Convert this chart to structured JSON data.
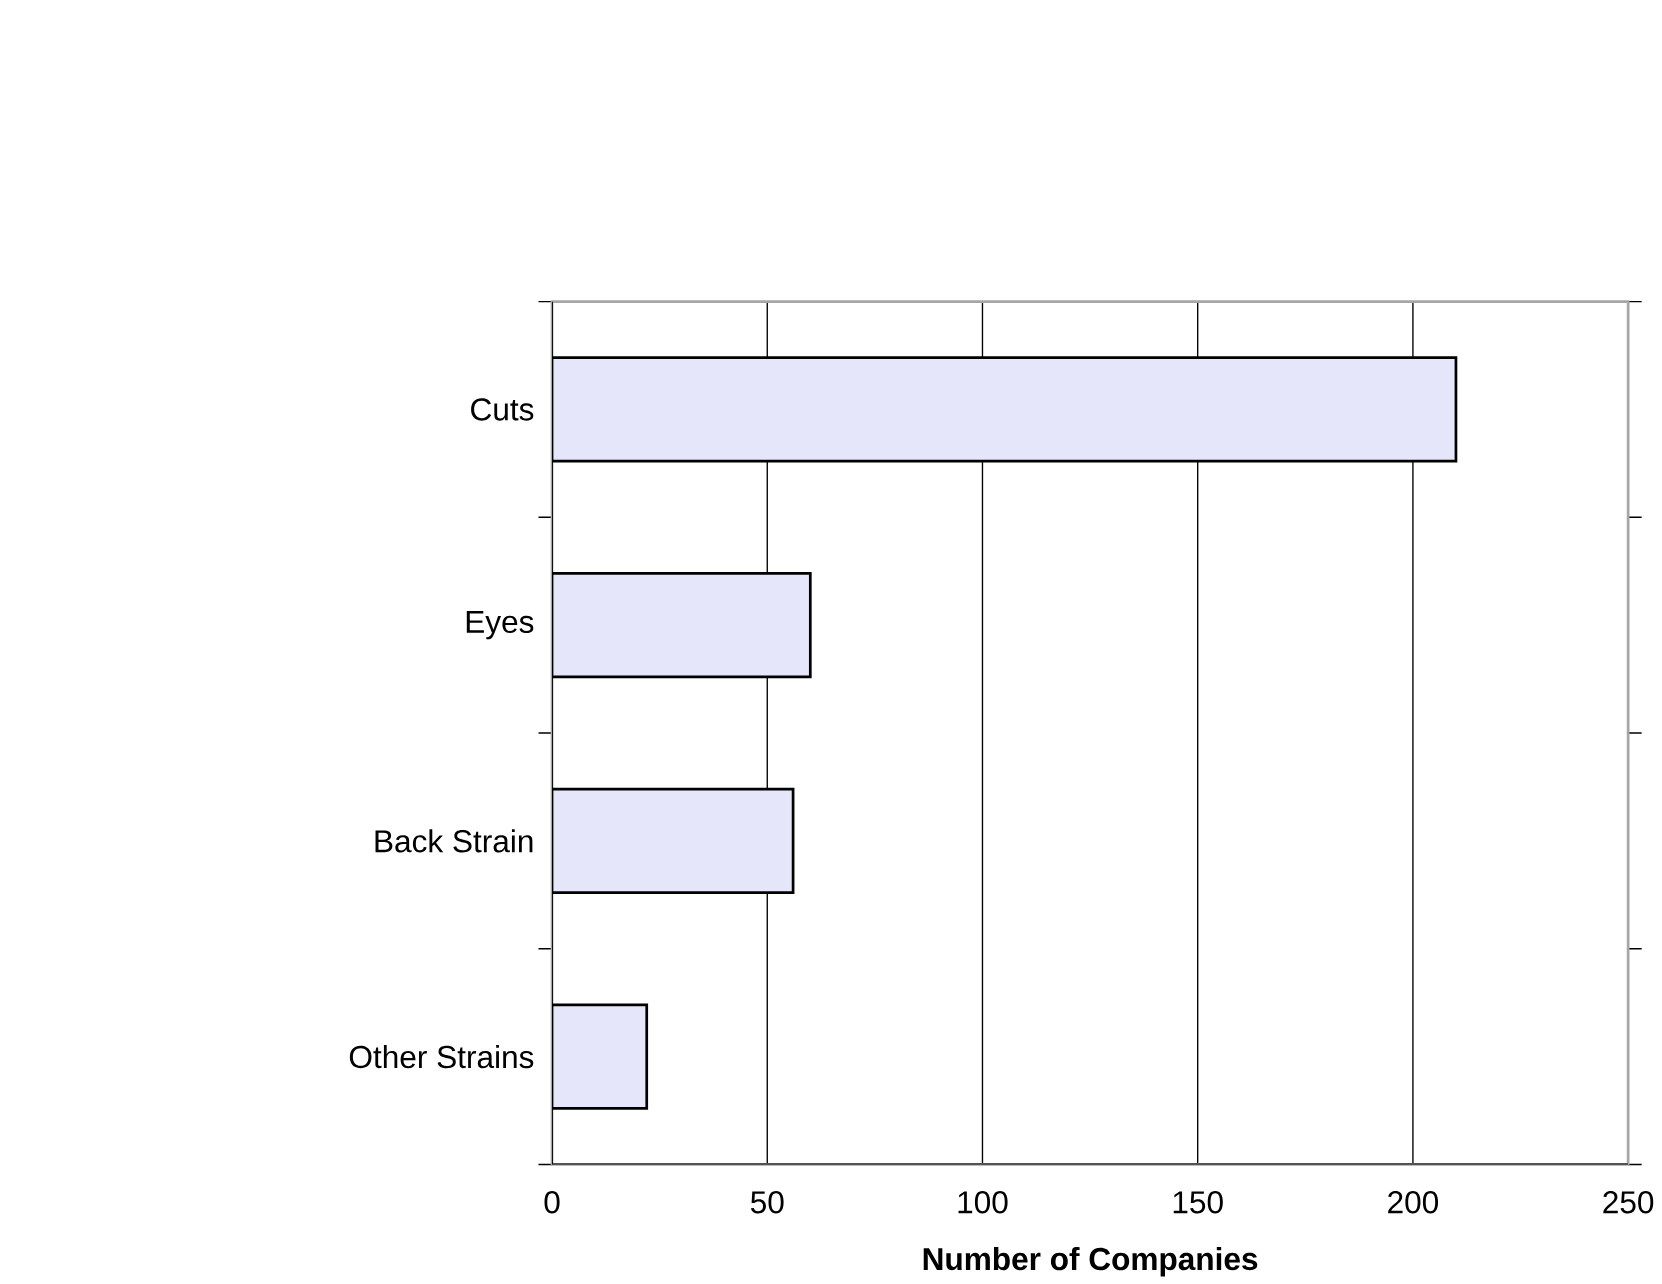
{
  "chart_data": {
    "type": "bar",
    "orientation": "horizontal",
    "xlabel": "Number of Companies",
    "categories": [
      "Cuts",
      "Eyes",
      "Back Strain",
      "Other Strains"
    ],
    "values": [
      210,
      60,
      56,
      22
    ],
    "color": "#e6e6fa",
    "xlim": [
      0,
      250
    ],
    "xticks": [
      0,
      50,
      100,
      150,
      200,
      250
    ],
    "grid": "x"
  }
}
